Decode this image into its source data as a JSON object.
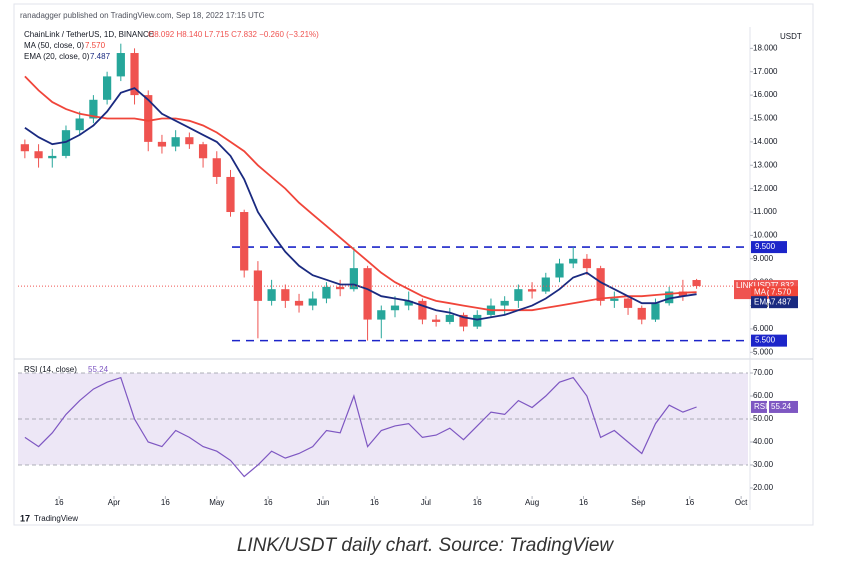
{
  "header": {
    "published": "ranadagger published on TradingView.com, Sep 18, 2022 17:15 UTC",
    "currency": "USDT",
    "logo": "TradingView"
  },
  "caption": "LINK/USDT daily chart. Source: TradingView",
  "chart_data": [
    {
      "type": "candlestick",
      "symbol": "ChainLink / TetherUS, 1D, BINANCE",
      "ohlc": "O8.092 H8.140 L7.715 C7.832 −0.260 (−3.21%)",
      "ticker": "LINKUSDT",
      "last_label": "7.832",
      "countdown": "06:44:58",
      "up_color": "#26a69a",
      "down_color": "#ef5350",
      "x": [
        "2022-03-06",
        "2022-03-10",
        "2022-03-14",
        "2022-03-18",
        "2022-03-22",
        "2022-03-26",
        "2022-03-30",
        "2022-04-03",
        "2022-04-07",
        "2022-04-11",
        "2022-04-15",
        "2022-04-19",
        "2022-04-23",
        "2022-04-27",
        "2022-05-01",
        "2022-05-05",
        "2022-05-09",
        "2022-05-13",
        "2022-05-17",
        "2022-05-21",
        "2022-05-25",
        "2022-05-29",
        "2022-06-02",
        "2022-06-06",
        "2022-06-10",
        "2022-06-14",
        "2022-06-18",
        "2022-06-22",
        "2022-06-26",
        "2022-06-30",
        "2022-07-04",
        "2022-07-08",
        "2022-07-12",
        "2022-07-16",
        "2022-07-20",
        "2022-07-24",
        "2022-07-28",
        "2022-08-01",
        "2022-08-05",
        "2022-08-09",
        "2022-08-13",
        "2022-08-17",
        "2022-08-21",
        "2022-08-25",
        "2022-08-29",
        "2022-09-02",
        "2022-09-06",
        "2022-09-10",
        "2022-09-14",
        "2022-09-18"
      ],
      "open": [
        13.9,
        13.6,
        13.3,
        13.4,
        14.5,
        15.0,
        15.8,
        16.8,
        17.8,
        16.0,
        14.0,
        13.8,
        14.2,
        13.9,
        13.3,
        12.5,
        11.0,
        8.5,
        7.2,
        7.7,
        7.2,
        7.0,
        7.3,
        7.8,
        7.7,
        8.6,
        6.4,
        6.8,
        7.0,
        7.2,
        6.4,
        6.3,
        6.6,
        6.1,
        6.6,
        7.0,
        7.2,
        7.7,
        7.6,
        8.2,
        8.8,
        9.0,
        8.6,
        7.2,
        7.3,
        6.9,
        6.4,
        7.1,
        7.6,
        8.092
      ],
      "high": [
        14.1,
        13.9,
        13.7,
        14.7,
        15.3,
        16.0,
        17.0,
        18.2,
        18.0,
        16.2,
        14.3,
        14.5,
        14.4,
        14.0,
        13.6,
        12.8,
        11.1,
        8.9,
        8.1,
        7.9,
        7.5,
        7.6,
        8.0,
        8.1,
        9.5,
        8.7,
        7.0,
        7.4,
        7.6,
        7.3,
        6.6,
        6.9,
        6.7,
        6.8,
        7.3,
        7.4,
        7.9,
        8.0,
        8.4,
        9.0,
        9.5,
        9.2,
        8.7,
        7.6,
        7.4,
        7.0,
        7.3,
        7.8,
        8.1,
        8.14
      ],
      "low": [
        13.3,
        12.9,
        12.9,
        13.3,
        14.3,
        14.8,
        15.6,
        16.6,
        15.6,
        13.6,
        13.5,
        13.6,
        13.7,
        12.9,
        12.2,
        10.8,
        8.2,
        5.6,
        7.0,
        6.9,
        6.7,
        6.8,
        7.1,
        7.4,
        7.6,
        5.5,
        5.6,
        6.5,
        6.8,
        6.2,
        6.1,
        6.2,
        5.9,
        6.0,
        6.5,
        6.6,
        6.9,
        7.3,
        7.5,
        8.0,
        8.6,
        8.3,
        7.0,
        6.9,
        6.6,
        6.2,
        6.3,
        7.0,
        7.2,
        7.715
      ],
      "close": [
        13.6,
        13.3,
        13.4,
        14.5,
        15.0,
        15.8,
        16.8,
        17.8,
        16.0,
        14.0,
        13.8,
        14.2,
        13.9,
        13.3,
        12.5,
        11.0,
        8.5,
        7.2,
        7.7,
        7.2,
        7.0,
        7.3,
        7.8,
        7.7,
        8.6,
        6.4,
        6.8,
        7.0,
        7.2,
        6.4,
        6.3,
        6.6,
        6.1,
        6.6,
        7.0,
        7.2,
        7.7,
        7.6,
        8.2,
        8.8,
        9.0,
        8.6,
        7.2,
        7.3,
        6.9,
        6.4,
        7.1,
        7.6,
        7.4,
        7.832
      ],
      "series": [
        {
          "name": "MA (50, close, 0)",
          "tag": "MA",
          "last_label": "7.570",
          "color": "#f0453a",
          "values": [
            16.8,
            16.2,
            15.7,
            15.4,
            15.2,
            15.1,
            15.0,
            15.0,
            15.0,
            14.9,
            15.0,
            15.0,
            14.9,
            14.7,
            14.4,
            14.0,
            13.6,
            13.0,
            12.5,
            12.0,
            11.4,
            10.9,
            10.4,
            9.9,
            9.4,
            8.9,
            8.4,
            8.0,
            7.7,
            7.4,
            7.2,
            7.1,
            7.0,
            6.9,
            6.8,
            6.8,
            6.8,
            6.8,
            6.9,
            7.0,
            7.1,
            7.2,
            7.3,
            7.35,
            7.4,
            7.4,
            7.45,
            7.5,
            7.55,
            7.57
          ]
        },
        {
          "name": "EMA (20, close, 0)",
          "tag": "EMA",
          "last_label": "7.487",
          "color": "#1a2a80",
          "values": [
            14.6,
            14.2,
            13.9,
            14.0,
            14.3,
            14.7,
            15.3,
            16.1,
            16.3,
            15.8,
            15.2,
            14.9,
            14.6,
            14.3,
            14.0,
            13.4,
            12.4,
            11.0,
            10.1,
            9.3,
            8.7,
            8.3,
            8.1,
            7.9,
            7.9,
            7.7,
            7.4,
            7.3,
            7.2,
            7.0,
            6.8,
            6.7,
            6.5,
            6.4,
            6.5,
            6.6,
            6.8,
            7.0,
            7.3,
            7.7,
            8.2,
            8.4,
            8.0,
            7.7,
            7.4,
            7.1,
            7.1,
            7.3,
            7.4,
            7.487
          ]
        }
      ],
      "levels": [
        {
          "value": 9.5,
          "label": "9.500"
        },
        {
          "value": 5.5,
          "label": "5.500"
        }
      ],
      "level_color": "#1c25c9",
      "xlim": [
        "2022-03-04",
        "2022-10-03"
      ],
      "ylim": [
        4.8,
        18.87
      ],
      "yticks": [
        {
          "value": 5,
          "label": "5.000"
        },
        {
          "value": 6,
          "label": "6.000"
        },
        {
          "value": 7,
          "label": "7.000"
        },
        {
          "value": 8,
          "label": "8.000"
        },
        {
          "value": 9,
          "label": "9.000"
        },
        {
          "value": 10,
          "label": "10.000"
        },
        {
          "value": 11,
          "label": "11.000"
        },
        {
          "value": 12,
          "label": "12.000"
        },
        {
          "value": 13,
          "label": "13.000"
        },
        {
          "value": 14,
          "label": "14.000"
        },
        {
          "value": 15,
          "label": "15.000"
        },
        {
          "value": 16,
          "label": "16.000"
        },
        {
          "value": 17,
          "label": "17.000"
        },
        {
          "value": 18,
          "label": "18.000"
        }
      ]
    },
    {
      "type": "line",
      "name": "RSI (14, close)",
      "tag": "RSI",
      "last_label": "55.24",
      "color": "#7e57c2",
      "x": [
        "2022-03-06",
        "2022-03-10",
        "2022-03-14",
        "2022-03-18",
        "2022-03-22",
        "2022-03-26",
        "2022-03-30",
        "2022-04-03",
        "2022-04-07",
        "2022-04-11",
        "2022-04-15",
        "2022-04-19",
        "2022-04-23",
        "2022-04-27",
        "2022-05-01",
        "2022-05-05",
        "2022-05-09",
        "2022-05-13",
        "2022-05-17",
        "2022-05-21",
        "2022-05-25",
        "2022-05-29",
        "2022-06-02",
        "2022-06-06",
        "2022-06-10",
        "2022-06-14",
        "2022-06-18",
        "2022-06-22",
        "2022-06-26",
        "2022-06-30",
        "2022-07-04",
        "2022-07-08",
        "2022-07-12",
        "2022-07-16",
        "2022-07-20",
        "2022-07-24",
        "2022-07-28",
        "2022-08-01",
        "2022-08-05",
        "2022-08-09",
        "2022-08-13",
        "2022-08-17",
        "2022-08-21",
        "2022-08-25",
        "2022-08-29",
        "2022-09-02",
        "2022-09-06",
        "2022-09-10",
        "2022-09-14",
        "2022-09-18"
      ],
      "values": [
        42,
        38,
        44,
        52,
        58,
        63,
        66,
        68,
        50,
        40,
        38,
        45,
        42,
        38,
        36,
        32,
        25,
        30,
        36,
        33,
        35,
        38,
        45,
        44,
        60,
        38,
        45,
        47,
        48,
        42,
        43,
        46,
        41,
        47,
        53,
        52,
        58,
        55,
        60,
        66,
        68,
        60,
        42,
        45,
        40,
        35,
        48,
        56,
        53,
        55.24
      ],
      "band": [
        30,
        70
      ],
      "band_color": "#ede7f6",
      "guides": [
        30,
        50,
        70
      ],
      "xlim": [
        "2022-03-04",
        "2022-10-03"
      ],
      "ylim": [
        16.5,
        74.8
      ],
      "yticks": [
        {
          "value": 20,
          "label": "20.00"
        },
        {
          "value": 30,
          "label": "30.00"
        },
        {
          "value": 40,
          "label": "40.00"
        },
        {
          "value": 50,
          "label": "50.00"
        },
        {
          "value": 60,
          "label": "60.00"
        },
        {
          "value": 70,
          "label": "70.00"
        }
      ],
      "xticks": [
        {
          "value": "2022-03-16",
          "label": "16"
        },
        {
          "value": "2022-04-01",
          "label": "Apr"
        },
        {
          "value": "2022-04-16",
          "label": "16"
        },
        {
          "value": "2022-05-01",
          "label": "May"
        },
        {
          "value": "2022-05-16",
          "label": "16"
        },
        {
          "value": "2022-06-01",
          "label": "Jun"
        },
        {
          "value": "2022-06-16",
          "label": "16"
        },
        {
          "value": "2022-07-01",
          "label": "Jul"
        },
        {
          "value": "2022-07-16",
          "label": "16"
        },
        {
          "value": "2022-08-01",
          "label": "Aug"
        },
        {
          "value": "2022-08-16",
          "label": "16"
        },
        {
          "value": "2022-09-01",
          "label": "Sep"
        },
        {
          "value": "2022-09-16",
          "label": "16"
        },
        {
          "value": "2022-10-01",
          "label": "Oct"
        }
      ]
    }
  ]
}
